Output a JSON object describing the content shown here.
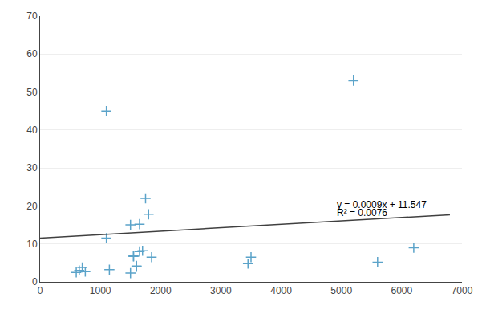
{
  "chart_data": {
    "type": "scatter",
    "series": [
      {
        "type": "scatter",
        "marker": "plus",
        "color": "#5BA3C9",
        "x": [
          600,
          650,
          700,
          750,
          1100,
          1100,
          1150,
          1500,
          1500,
          1550,
          1550,
          1600,
          1600,
          1650,
          1650,
          1700,
          1750,
          1800,
          1850,
          3450,
          3500,
          5200,
          5600,
          6200
        ],
        "values": [
          2.5,
          3.0,
          3.8,
          2.7,
          11.5,
          45.0,
          3.2,
          2.3,
          15.0,
          6.7,
          6.8,
          4.0,
          4.2,
          15.2,
          8.0,
          8.2,
          22.0,
          17.8,
          6.5,
          4.8,
          6.5,
          53.0,
          5.2,
          9.0
        ]
      },
      {
        "type": "line",
        "line_style": "solid",
        "color": "#404040",
        "x": [
          0,
          6800
        ],
        "values": [
          11.547,
          17.667
        ]
      }
    ],
    "annotations": [
      {
        "text": "y = 0.0009x + 11.547",
        "x": 4900,
        "y": 18.5
      },
      {
        "text": "R² = 0.0076",
        "x": 4900,
        "y": 16.3
      }
    ],
    "xlim": [
      0,
      7000
    ],
    "ylim": [
      0,
      70
    ],
    "xticks": [
      0,
      1000,
      2000,
      3000,
      4000,
      5000,
      6000,
      7000
    ],
    "yticks": [
      0,
      10,
      20,
      30,
      40,
      50,
      60,
      70
    ],
    "grid": "y"
  }
}
